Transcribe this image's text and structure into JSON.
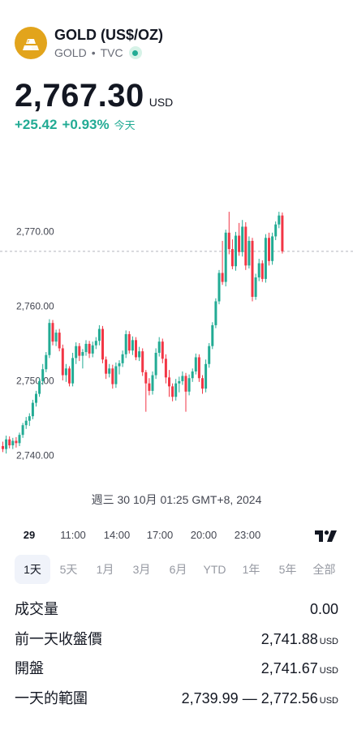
{
  "header": {
    "symbol_title": "GOLD (US$/OZ)",
    "ticker": "GOLD",
    "separator": "•",
    "exchange": "TVC"
  },
  "quote": {
    "price": "2,767.30",
    "currency": "USD",
    "change": "+25.42",
    "change_percent": "+0.93%",
    "period": "今天"
  },
  "chart_data": {
    "type": "candlestick",
    "y_ticks": [
      "2,770.00",
      "2,760.00",
      "2,750.00",
      "2,740.00"
    ],
    "y_tick_values": [
      2770,
      2760,
      2750,
      2740
    ],
    "reference_line": 2767.3,
    "x_ticks": [
      "29",
      "11:00",
      "14:00",
      "17:00",
      "20:00",
      "23:00"
    ],
    "colors": {
      "up": "#22ab94",
      "down": "#f23645",
      "grid": "#b2b5be"
    },
    "candles": [
      [
        2741.2,
        2741.8,
        2740.4,
        2740.8
      ],
      [
        2740.8,
        2742.6,
        2740.2,
        2742.1
      ],
      [
        2742.1,
        2742.5,
        2740.9,
        2741.3
      ],
      [
        2741.3,
        2742.3,
        2740.8,
        2741.9
      ],
      [
        2741.9,
        2742.4,
        2741.0,
        2741.6
      ],
      [
        2741.6,
        2743.0,
        2741.2,
        2742.7
      ],
      [
        2742.7,
        2744.3,
        2742.3,
        2744.0
      ],
      [
        2744.0,
        2745.1,
        2743.5,
        2744.6
      ],
      [
        2744.6,
        2745.6,
        2743.9,
        2745.2
      ],
      [
        2745.2,
        2747.4,
        2744.8,
        2747.0
      ],
      [
        2747.0,
        2748.6,
        2746.5,
        2748.2
      ],
      [
        2748.2,
        2750.3,
        2747.8,
        2749.9
      ],
      [
        2749.9,
        2752.2,
        2749.4,
        2751.5
      ],
      [
        2751.5,
        2753.8,
        2751.1,
        2753.4
      ],
      [
        2753.4,
        2758.2,
        2753.0,
        2757.7
      ],
      [
        2757.7,
        2758.1,
        2754.7,
        2755.2
      ],
      [
        2755.2,
        2756.8,
        2754.6,
        2756.4
      ],
      [
        2756.4,
        2756.9,
        2753.9,
        2754.3
      ],
      [
        2754.3,
        2754.8,
        2750.0,
        2750.7
      ],
      [
        2750.7,
        2752.2,
        2749.8,
        2751.6
      ],
      [
        2751.6,
        2751.9,
        2749.2,
        2749.6
      ],
      [
        2749.6,
        2753.7,
        2749.2,
        2753.0
      ],
      [
        2753.0,
        2755.1,
        2752.2,
        2754.6
      ],
      [
        2754.6,
        2755.0,
        2752.6,
        2753.3
      ],
      [
        2753.3,
        2754.2,
        2751.6,
        2753.8
      ],
      [
        2753.8,
        2755.4,
        2753.3,
        2754.9
      ],
      [
        2754.9,
        2755.3,
        2753.0,
        2753.6
      ],
      [
        2753.6,
        2755.2,
        2753.1,
        2754.7
      ],
      [
        2754.7,
        2755.8,
        2754.2,
        2755.3
      ],
      [
        2755.3,
        2757.4,
        2754.7,
        2756.9
      ],
      [
        2756.9,
        2757.3,
        2752.3,
        2752.8
      ],
      [
        2752.8,
        2753.2,
        2750.2,
        2750.9
      ],
      [
        2750.9,
        2752.2,
        2750.4,
        2751.6
      ],
      [
        2751.6,
        2752.1,
        2748.9,
        2749.5
      ],
      [
        2749.5,
        2752.4,
        2749.0,
        2751.9
      ],
      [
        2751.9,
        2752.7,
        2750.8,
        2752.3
      ],
      [
        2752.3,
        2754.0,
        2751.8,
        2753.5
      ],
      [
        2753.5,
        2756.7,
        2753.0,
        2756.2
      ],
      [
        2756.2,
        2756.6,
        2753.6,
        2754.0
      ],
      [
        2754.0,
        2755.9,
        2753.4,
        2755.4
      ],
      [
        2755.4,
        2755.8,
        2752.7,
        2753.1
      ],
      [
        2753.1,
        2754.5,
        2752.6,
        2753.9
      ],
      [
        2753.9,
        2754.3,
        2750.6,
        2751.1
      ],
      [
        2751.1,
        2751.4,
        2745.8,
        2749.6
      ],
      [
        2749.6,
        2750.3,
        2748.0,
        2748.6
      ],
      [
        2748.6,
        2751.2,
        2748.1,
        2750.7
      ],
      [
        2750.7,
        2754.3,
        2750.2,
        2753.7
      ],
      [
        2753.7,
        2755.8,
        2753.2,
        2755.2
      ],
      [
        2755.2,
        2755.6,
        2752.3,
        2752.9
      ],
      [
        2752.9,
        2753.5,
        2749.6,
        2750.4
      ],
      [
        2750.4,
        2751.4,
        2747.8,
        2749.2
      ],
      [
        2749.2,
        2749.6,
        2747.2,
        2747.8
      ],
      [
        2747.8,
        2750.2,
        2747.3,
        2749.6
      ],
      [
        2749.6,
        2750.5,
        2748.4,
        2749.9
      ],
      [
        2749.9,
        2751.2,
        2749.4,
        2750.6
      ],
      [
        2750.6,
        2751.0,
        2745.8,
        2748.5
      ],
      [
        2748.5,
        2750.8,
        2748.0,
        2750.3
      ],
      [
        2750.3,
        2751.6,
        2749.8,
        2751.2
      ],
      [
        2751.2,
        2753.6,
        2750.8,
        2753.1
      ],
      [
        2753.1,
        2753.5,
        2749.8,
        2750.3
      ],
      [
        2750.3,
        2750.7,
        2748.2,
        2748.9
      ],
      [
        2748.9,
        2752.8,
        2748.4,
        2752.2
      ],
      [
        2752.2,
        2755.0,
        2751.7,
        2754.6
      ],
      [
        2754.6,
        2757.8,
        2754.2,
        2757.4
      ],
      [
        2757.4,
        2761.0,
        2757.0,
        2760.6
      ],
      [
        2760.6,
        2764.8,
        2760.2,
        2764.4
      ],
      [
        2764.4,
        2768.7,
        2762.8,
        2763.2
      ],
      [
        2763.2,
        2770.2,
        2762.6,
        2769.8
      ],
      [
        2769.8,
        2772.6,
        2766.9,
        2767.6
      ],
      [
        2767.6,
        2768.9,
        2764.9,
        2765.3
      ],
      [
        2765.3,
        2769.9,
        2764.7,
        2769.4
      ],
      [
        2769.4,
        2771.1,
        2766.7,
        2767.2
      ],
      [
        2767.2,
        2771.5,
        2766.6,
        2770.6
      ],
      [
        2770.6,
        2771.2,
        2764.8,
        2765.4
      ],
      [
        2765.4,
        2769.3,
        2765.0,
        2768.7
      ],
      [
        2768.7,
        2769.1,
        2760.6,
        2761.2
      ],
      [
        2761.2,
        2764.3,
        2760.8,
        2763.8
      ],
      [
        2763.8,
        2766.3,
        2763.3,
        2765.7
      ],
      [
        2765.7,
        2766.1,
        2763.2,
        2763.6
      ],
      [
        2763.6,
        2769.6,
        2763.1,
        2769.1
      ],
      [
        2769.1,
        2769.8,
        2765.4,
        2766.0
      ],
      [
        2766.0,
        2769.8,
        2765.5,
        2769.3
      ],
      [
        2769.3,
        2771.3,
        2768.8,
        2770.9
      ],
      [
        2770.9,
        2772.6,
        2770.4,
        2772.1
      ],
      [
        2772.1,
        2772.5,
        2767.0,
        2767.3
      ]
    ]
  },
  "crosshair_time": "週三 30 10月 01:25 GMT+8, 2024",
  "time_axis": [
    "29",
    "11:00",
    "14:00",
    "17:00",
    "20:00",
    "23:00"
  ],
  "tv_logo": "tradingview-logo",
  "range_tabs": [
    "1天",
    "5天",
    "1月",
    "3月",
    "6月",
    "YTD",
    "1年",
    "5年",
    "全部"
  ],
  "active_range": "1天",
  "stats": {
    "volume": {
      "label": "成交量",
      "value": "0.00"
    },
    "prev_close": {
      "label": "前一天收盤價",
      "value": "2,741.88",
      "unit": "USD"
    },
    "open": {
      "label": "開盤",
      "value": "2,741.67",
      "unit": "USD"
    },
    "day_range": {
      "label": "一天的範圍",
      "value": "2,739.99 — 2,772.56",
      "unit": "USD"
    }
  }
}
